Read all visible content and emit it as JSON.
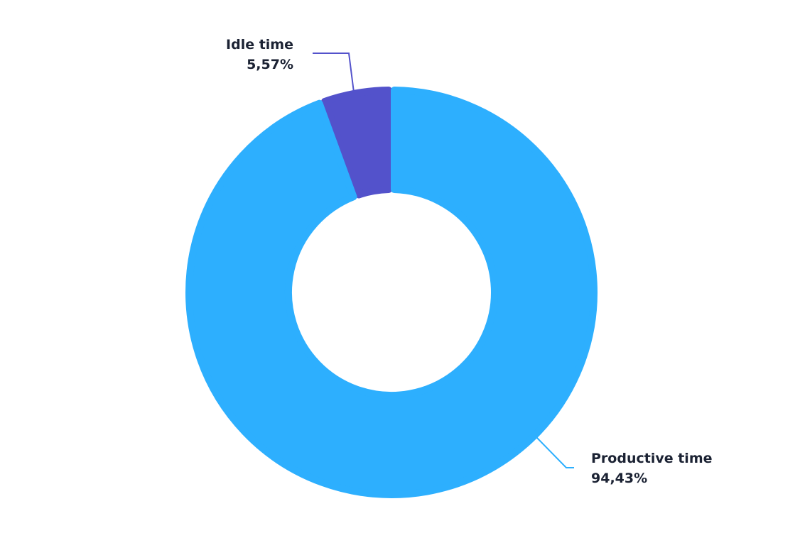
{
  "chart_data": {
    "type": "pie",
    "variant": "donut",
    "title": "",
    "categories": [
      "Idle time",
      "Productive time"
    ],
    "values": [
      5.57,
      94.43
    ],
    "value_labels": [
      "5,57%",
      "94,43%"
    ],
    "colors": [
      "#5352cb",
      "#2daffe"
    ],
    "legend": "none",
    "grid": false
  }
}
